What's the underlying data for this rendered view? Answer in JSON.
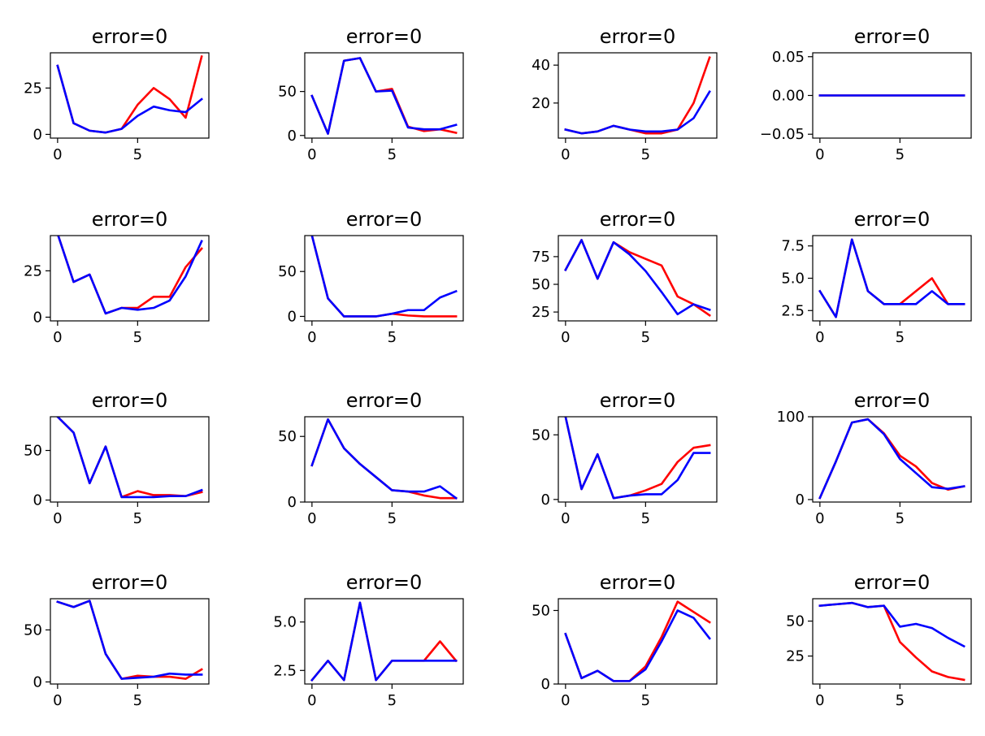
{
  "colors": {
    "series_a": "#ff0000",
    "series_b": "#0000ff",
    "axes": "#000000"
  },
  "chart_data": [
    {
      "type": "line",
      "title": "error=0",
      "x": [
        0,
        1,
        2,
        3,
        4,
        5,
        6,
        7,
        8,
        9
      ],
      "xlim": [
        -0.45,
        9.45
      ],
      "ylim": [
        -2,
        44
      ],
      "xticks": [
        {
          "v": 0,
          "label": "0"
        },
        {
          "v": 5,
          "label": "5"
        }
      ],
      "yticks": [
        {
          "v": 0,
          "label": "0"
        },
        {
          "v": 25,
          "label": "25"
        }
      ],
      "series": [
        {
          "values": [
            37,
            6,
            2,
            1,
            3,
            16,
            25,
            19,
            9,
            42
          ]
        },
        {
          "values": [
            37,
            6,
            2,
            1,
            3,
            10,
            15,
            13,
            12,
            19
          ]
        }
      ]
    },
    {
      "type": "line",
      "title": "error=0",
      "x": [
        0,
        1,
        2,
        3,
        4,
        5,
        6,
        7,
        8,
        9
      ],
      "xlim": [
        -0.45,
        9.45
      ],
      "ylim": [
        -3,
        94
      ],
      "xticks": [
        {
          "v": 0,
          "label": "0"
        },
        {
          "v": 5,
          "label": "5"
        }
      ],
      "yticks": [
        {
          "v": 0,
          "label": "0"
        },
        {
          "v": 50,
          "label": "50"
        }
      ],
      "series": [
        {
          "values": [
            45,
            2,
            85,
            88,
            50,
            53,
            10,
            5,
            7,
            3
          ]
        },
        {
          "values": [
            45,
            2,
            85,
            88,
            50,
            51,
            9,
            7,
            7,
            12
          ]
        }
      ]
    },
    {
      "type": "line",
      "title": "error=0",
      "x": [
        0,
        1,
        2,
        3,
        4,
        5,
        6,
        7,
        8,
        9
      ],
      "xlim": [
        -0.45,
        9.45
      ],
      "ylim": [
        1.5,
        46.5
      ],
      "xticks": [
        {
          "v": 0,
          "label": "0"
        },
        {
          "v": 5,
          "label": "5"
        }
      ],
      "yticks": [
        {
          "v": 20,
          "label": "20"
        },
        {
          "v": 40,
          "label": "40"
        }
      ],
      "series": [
        {
          "values": [
            6,
            4,
            5,
            8,
            6,
            4,
            4,
            6,
            20,
            44
          ]
        },
        {
          "values": [
            6,
            4,
            5,
            8,
            6,
            5,
            5,
            6,
            12,
            26
          ]
        }
      ]
    },
    {
      "type": "line",
      "title": "error=0",
      "x": [
        0,
        1,
        2,
        3,
        4,
        5,
        6,
        7,
        8,
        9
      ],
      "xlim": [
        -0.45,
        9.45
      ],
      "ylim": [
        -0.055,
        0.055
      ],
      "xticks": [
        {
          "v": 0,
          "label": "0"
        },
        {
          "v": 5,
          "label": "5"
        }
      ],
      "yticks": [
        {
          "v": -0.05,
          "label": "−0.05"
        },
        {
          "v": 0,
          "label": "0.00"
        },
        {
          "v": 0.05,
          "label": "0.05"
        }
      ],
      "series": [
        {
          "values": [
            0,
            0,
            0,
            0,
            0,
            0,
            0,
            0,
            0,
            0
          ]
        },
        {
          "values": [
            0,
            0,
            0,
            0,
            0,
            0,
            0,
            0,
            0,
            0
          ]
        }
      ]
    },
    {
      "type": "line",
      "title": "error=0",
      "x": [
        0,
        1,
        2,
        3,
        4,
        5,
        6,
        7,
        8,
        9
      ],
      "xlim": [
        -0.45,
        9.45
      ],
      "ylim": [
        -2,
        44
      ],
      "xticks": [
        {
          "v": 0,
          "label": "0"
        },
        {
          "v": 5,
          "label": "5"
        }
      ],
      "yticks": [
        {
          "v": 0,
          "label": "0"
        },
        {
          "v": 25,
          "label": "25"
        }
      ],
      "series": [
        {
          "values": [
            45,
            19,
            23,
            2,
            5,
            5,
            11,
            11,
            27,
            37
          ]
        },
        {
          "values": [
            45,
            19,
            23,
            2,
            5,
            4,
            5,
            9,
            22,
            41
          ]
        }
      ]
    },
    {
      "type": "line",
      "title": "error=0",
      "x": [
        0,
        1,
        2,
        3,
        4,
        5,
        6,
        7,
        8,
        9
      ],
      "xlim": [
        -0.45,
        9.45
      ],
      "ylim": [
        -5,
        90
      ],
      "xticks": [
        {
          "v": 0,
          "label": "0"
        },
        {
          "v": 5,
          "label": "5"
        }
      ],
      "yticks": [
        {
          "v": 0,
          "label": "0"
        },
        {
          "v": 50,
          "label": "50"
        }
      ],
      "series": [
        {
          "values": [
            90,
            20,
            0,
            0,
            0,
            3,
            1,
            0,
            0,
            0
          ]
        },
        {
          "values": [
            90,
            20,
            0,
            0,
            0,
            3,
            7,
            7,
            21,
            28
          ]
        }
      ]
    },
    {
      "type": "line",
      "title": "error=0",
      "x": [
        0,
        1,
        2,
        3,
        4,
        5,
        6,
        7,
        8,
        9
      ],
      "xlim": [
        -0.45,
        9.45
      ],
      "ylim": [
        17,
        94
      ],
      "xticks": [
        {
          "v": 0,
          "label": "0"
        },
        {
          "v": 5,
          "label": "5"
        }
      ],
      "yticks": [
        {
          "v": 25,
          "label": "25"
        },
        {
          "v": 50,
          "label": "50"
        },
        {
          "v": 75,
          "label": "75"
        }
      ],
      "series": [
        {
          "values": [
            63,
            90,
            55,
            88,
            79,
            73,
            67,
            39,
            32,
            22
          ]
        },
        {
          "values": [
            63,
            90,
            55,
            88,
            77,
            62,
            43,
            23,
            32,
            27
          ]
        }
      ]
    },
    {
      "type": "line",
      "title": "error=0",
      "x": [
        0,
        1,
        2,
        3,
        4,
        5,
        6,
        7,
        8,
        9
      ],
      "xlim": [
        -0.45,
        9.45
      ],
      "ylim": [
        1.7,
        8.3
      ],
      "xticks": [
        {
          "v": 0,
          "label": "0"
        },
        {
          "v": 5,
          "label": "5"
        }
      ],
      "yticks": [
        {
          "v": 2.5,
          "label": "2.5"
        },
        {
          "v": 5,
          "label": "5.0"
        },
        {
          "v": 7.5,
          "label": "7.5"
        }
      ],
      "series": [
        {
          "values": [
            4,
            2,
            8,
            4,
            3,
            3,
            4,
            5,
            3,
            3
          ]
        },
        {
          "values": [
            4,
            2,
            8,
            4,
            3,
            3,
            3,
            4,
            3,
            3
          ]
        }
      ]
    },
    {
      "type": "line",
      "title": "error=0",
      "x": [
        0,
        1,
        2,
        3,
        4,
        5,
        6,
        7,
        8,
        9
      ],
      "xlim": [
        -0.45,
        9.45
      ],
      "ylim": [
        -2,
        84
      ],
      "xticks": [
        {
          "v": 0,
          "label": "0"
        },
        {
          "v": 5,
          "label": "5"
        }
      ],
      "yticks": [
        {
          "v": 0,
          "label": "0"
        },
        {
          "v": 50,
          "label": "50"
        }
      ],
      "series": [
        {
          "values": [
            84,
            68,
            17,
            54,
            3,
            9,
            5,
            5,
            4,
            8
          ]
        },
        {
          "values": [
            84,
            68,
            17,
            54,
            3,
            3,
            3,
            4,
            4,
            10
          ]
        }
      ]
    },
    {
      "type": "line",
      "title": "error=0",
      "x": [
        0,
        1,
        2,
        3,
        4,
        5,
        6,
        7,
        8,
        9
      ],
      "xlim": [
        -0.45,
        9.45
      ],
      "ylim": [
        0,
        65
      ],
      "xticks": [
        {
          "v": 0,
          "label": "0"
        },
        {
          "v": 5,
          "label": "5"
        }
      ],
      "yticks": [
        {
          "v": 0,
          "label": "0"
        },
        {
          "v": 50,
          "label": "50"
        }
      ],
      "series": [
        {
          "values": [
            28,
            63,
            41,
            29,
            19,
            9,
            8,
            5,
            3,
            3
          ]
        },
        {
          "values": [
            28,
            63,
            41,
            29,
            19,
            9,
            8,
            8,
            12,
            3
          ]
        }
      ]
    },
    {
      "type": "line",
      "title": "error=0",
      "x": [
        0,
        1,
        2,
        3,
        4,
        5,
        6,
        7,
        8,
        9
      ],
      "xlim": [
        -0.45,
        9.45
      ],
      "ylim": [
        -2,
        64
      ],
      "xticks": [
        {
          "v": 0,
          "label": "0"
        },
        {
          "v": 5,
          "label": "5"
        }
      ],
      "yticks": [
        {
          "v": 0,
          "label": "0"
        },
        {
          "v": 50,
          "label": "50"
        }
      ],
      "series": [
        {
          "values": [
            64,
            8,
            35,
            1,
            3,
            7,
            12,
            29,
            40,
            42
          ]
        },
        {
          "values": [
            64,
            8,
            35,
            1,
            3,
            4,
            4,
            15,
            36,
            36
          ]
        }
      ]
    },
    {
      "type": "line",
      "title": "error=0",
      "x": [
        0,
        1,
        2,
        3,
        4,
        5,
        6,
        7,
        8,
        9
      ],
      "xlim": [
        -0.45,
        9.45
      ],
      "ylim": [
        -3,
        100
      ],
      "xticks": [
        {
          "v": 0,
          "label": "0"
        },
        {
          "v": 5,
          "label": "5"
        }
      ],
      "yticks": [
        {
          "v": 0,
          "label": "0"
        },
        {
          "v": 100,
          "label": "100"
        }
      ],
      "series": [
        {
          "values": [
            2,
            46,
            93,
            97,
            80,
            53,
            40,
            20,
            12,
            16
          ]
        },
        {
          "values": [
            2,
            46,
            93,
            97,
            79,
            49,
            32,
            15,
            13,
            16
          ]
        }
      ]
    },
    {
      "type": "line",
      "title": "error=0",
      "x": [
        0,
        1,
        2,
        3,
        4,
        5,
        6,
        7,
        8,
        9
      ],
      "xlim": [
        -0.45,
        9.45
      ],
      "ylim": [
        -2,
        80
      ],
      "xticks": [
        {
          "v": 0,
          "label": "0"
        },
        {
          "v": 5,
          "label": "5"
        }
      ],
      "yticks": [
        {
          "v": 0,
          "label": "0"
        },
        {
          "v": 50,
          "label": "50"
        }
      ],
      "series": [
        {
          "values": [
            77,
            72,
            78,
            27,
            3,
            6,
            5,
            5,
            3,
            12
          ]
        },
        {
          "values": [
            77,
            72,
            78,
            27,
            3,
            4,
            5,
            8,
            7,
            7
          ]
        }
      ]
    },
    {
      "type": "line",
      "title": "error=0",
      "x": [
        0,
        1,
        2,
        3,
        4,
        5,
        6,
        7,
        8,
        9
      ],
      "xlim": [
        -0.45,
        9.45
      ],
      "ylim": [
        1.8,
        6.2
      ],
      "xticks": [
        {
          "v": 0,
          "label": "0"
        },
        {
          "v": 5,
          "label": "5"
        }
      ],
      "yticks": [
        {
          "v": 2.5,
          "label": "2.5"
        },
        {
          "v": 5,
          "label": "5.0"
        }
      ],
      "series": [
        {
          "values": [
            2,
            3,
            2,
            6,
            2,
            3,
            3,
            3,
            4,
            3
          ]
        },
        {
          "values": [
            2,
            3,
            2,
            6,
            2,
            3,
            3,
            3,
            3,
            3
          ]
        }
      ]
    },
    {
      "type": "line",
      "title": "error=0",
      "x": [
        0,
        1,
        2,
        3,
        4,
        5,
        6,
        7,
        8,
        9
      ],
      "xlim": [
        -0.45,
        9.45
      ],
      "ylim": [
        0,
        58
      ],
      "xticks": [
        {
          "v": 0,
          "label": "0"
        },
        {
          "v": 5,
          "label": "5"
        }
      ],
      "yticks": [
        {
          "v": 0,
          "label": "0"
        },
        {
          "v": 50,
          "label": "50"
        }
      ],
      "series": [
        {
          "values": [
            34,
            4,
            9,
            2,
            2,
            12,
            32,
            56,
            49,
            42
          ]
        },
        {
          "values": [
            34,
            4,
            9,
            2,
            2,
            10,
            29,
            50,
            45,
            31
          ]
        }
      ]
    },
    {
      "type": "line",
      "title": "error=0",
      "x": [
        0,
        1,
        2,
        3,
        4,
        5,
        6,
        7,
        8,
        9
      ],
      "xlim": [
        -0.45,
        9.45
      ],
      "ylim": [
        5,
        66
      ],
      "xticks": [
        {
          "v": 0,
          "label": "0"
        },
        {
          "v": 5,
          "label": "5"
        }
      ],
      "yticks": [
        {
          "v": 25,
          "label": "25"
        },
        {
          "v": 50,
          "label": "50"
        }
      ],
      "series": [
        {
          "values": [
            61,
            62,
            63,
            60,
            61,
            35,
            24,
            14,
            10,
            8
          ]
        },
        {
          "values": [
            61,
            62,
            63,
            60,
            61,
            46,
            48,
            45,
            38,
            32
          ]
        }
      ]
    }
  ]
}
